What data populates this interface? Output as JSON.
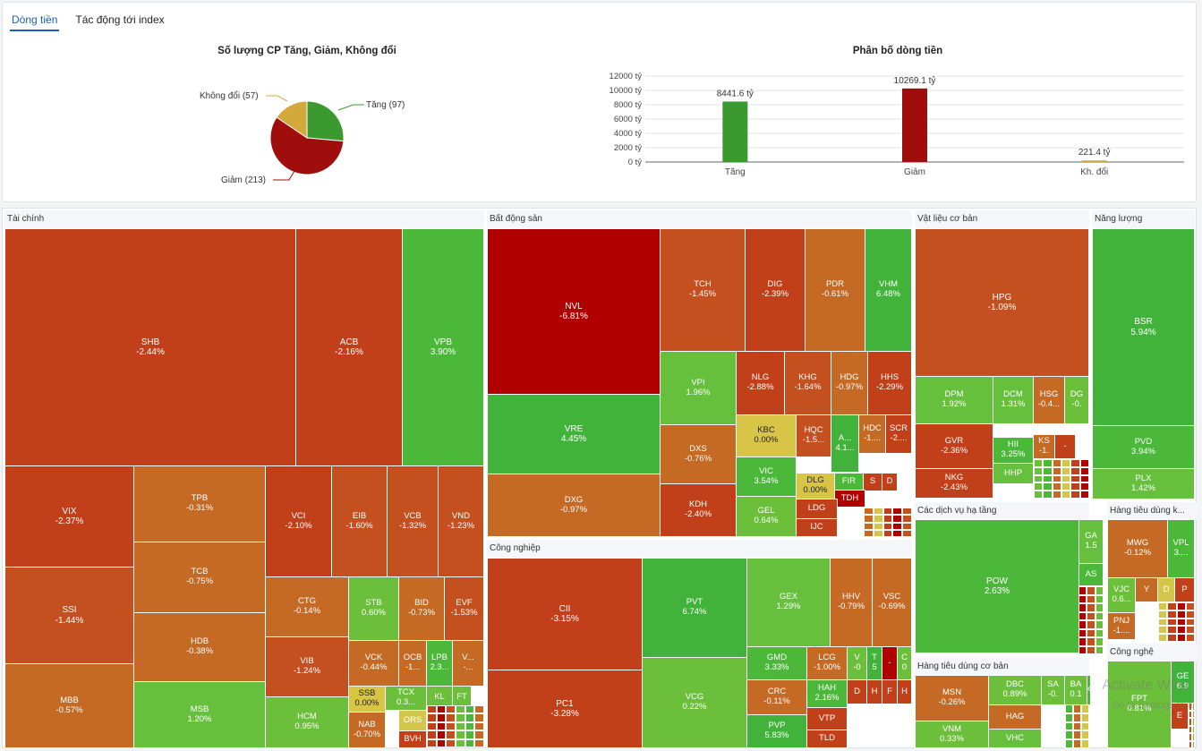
{
  "tabs": [
    "Dòng tiền",
    "Tác động tới index"
  ],
  "pie": {
    "title": "Số lượng CP Tăng, Giảm, Không đổi",
    "labels": [
      "Tăng (97)",
      "Giảm (213)",
      "Không đổi (57)"
    ]
  },
  "bar": {
    "title": "Phân bố dòng tiền",
    "y_ticks": [
      "12000 tỷ",
      "10000 tỷ",
      "8000 tỷ",
      "6000 tỷ",
      "4000 tỷ",
      "2000 tỷ",
      "0 tỷ"
    ],
    "value_labels": [
      "8441.6 tỷ",
      "10269.1 tỷ",
      "221.4 tỷ"
    ],
    "categories": [
      "Tăng",
      "Giảm",
      "Kh. đổi"
    ]
  },
  "chart_data": [
    {
      "type": "pie",
      "title": "Số lượng CP Tăng, Giảm, Không đổi",
      "labels": [
        "Tăng",
        "Giảm",
        "Không đổi"
      ],
      "values": [
        97,
        213,
        57
      ],
      "colors": [
        "#3a9a2f",
        "#a00d0d",
        "#d4a93c"
      ]
    },
    {
      "type": "bar",
      "title": "Phân bố dòng tiền",
      "categories": [
        "Tăng",
        "Giảm",
        "Kh. đổi"
      ],
      "values": [
        8441.6,
        10269.1,
        221.4
      ],
      "colors": [
        "#3a9a2f",
        "#a00d0d",
        "#d4a93c"
      ],
      "ylim": [
        0,
        12000
      ]
    }
  ],
  "sectors": [
    "Tài chính",
    "Bất động sản",
    "Vật liệu cơ bản",
    "Năng lượng",
    "Công nghiệp",
    "Các dịch vụ hạ tầng",
    "Hàng tiêu dùng k...",
    "Hàng tiêu dùng cơ bản",
    "Công nghệ"
  ],
  "stocks": [
    {
      "t": "SHB",
      "p": "-2.44%"
    },
    {
      "t": "ACB",
      "p": "-2.16%"
    },
    {
      "t": "VPB",
      "p": "3.90%"
    },
    {
      "t": "VIX",
      "p": "-2.37%"
    },
    {
      "t": "TPB",
      "p": "-0.31%"
    },
    {
      "t": "VCI",
      "p": "-2.10%"
    },
    {
      "t": "EIB",
      "p": "-1.60%"
    },
    {
      "t": "VCB",
      "p": "-1.32%"
    },
    {
      "t": "VND",
      "p": "-1.23%"
    },
    {
      "t": "TCB",
      "p": "-0.75%"
    },
    {
      "t": "CTG",
      "p": "-0.14%"
    },
    {
      "t": "STB",
      "p": "0.60%"
    },
    {
      "t": "BID",
      "p": "-0.73%"
    },
    {
      "t": "EVF",
      "p": "-1.53%"
    },
    {
      "t": "SSI",
      "p": "-1.44%"
    },
    {
      "t": "HDB",
      "p": "-0.38%"
    },
    {
      "t": "VIB",
      "p": "-1.24%"
    },
    {
      "t": "VCK",
      "p": "-0.44%"
    },
    {
      "t": "OCB",
      "p": "-1..."
    },
    {
      "t": "LPB",
      "p": "2.3..."
    },
    {
      "t": "V...",
      "p": "-..."
    },
    {
      "t": "SSB",
      "p": "0.00%"
    },
    {
      "t": "TCX",
      "p": "0.3..."
    },
    {
      "t": "KL",
      "p": ""
    },
    {
      "t": "FT",
      "p": ""
    },
    {
      "t": "MBB",
      "p": "-0.57%"
    },
    {
      "t": "MSB",
      "p": "1.20%"
    },
    {
      "t": "HCM",
      "p": "0.95%"
    },
    {
      "t": "NAB",
      "p": "-0.70%"
    },
    {
      "t": "ORS",
      "p": ""
    },
    {
      "t": "BVH",
      "p": ""
    },
    {
      "t": "NVL",
      "p": "-6.81%"
    },
    {
      "t": "TCH",
      "p": "-1.45%"
    },
    {
      "t": "DIG",
      "p": "-2.39%"
    },
    {
      "t": "PDR",
      "p": "-0.61%"
    },
    {
      "t": "VHM",
      "p": "6.48%"
    },
    {
      "t": "VPI",
      "p": "1.96%"
    },
    {
      "t": "NLG",
      "p": "-2.88%"
    },
    {
      "t": "KHG",
      "p": "-1.64%"
    },
    {
      "t": "HDG",
      "p": "-0.97%"
    },
    {
      "t": "HHS",
      "p": "-2.29%"
    },
    {
      "t": "VRE",
      "p": "4.45%"
    },
    {
      "t": "KBC",
      "p": "0.00%"
    },
    {
      "t": "HQC",
      "p": "-1.5..."
    },
    {
      "t": "A...",
      "p": "4.1..."
    },
    {
      "t": "HDC",
      "p": "-1...."
    },
    {
      "t": "SCR",
      "p": "-2...."
    },
    {
      "t": "DXS",
      "p": "-0.76%"
    },
    {
      "t": "VIC",
      "p": "3.54%"
    },
    {
      "t": "DLG",
      "p": "0.00%"
    },
    {
      "t": "FIR",
      "p": ""
    },
    {
      "t": "S",
      "p": ""
    },
    {
      "t": "D",
      "p": ""
    },
    {
      "t": "TDH",
      "p": ""
    },
    {
      "t": "DXG",
      "p": "-0.97%"
    },
    {
      "t": "KDH",
      "p": "-2.40%"
    },
    {
      "t": "GEL",
      "p": "0.64%"
    },
    {
      "t": "LDG",
      "p": ""
    },
    {
      "t": "IJC",
      "p": ""
    },
    {
      "t": "HPG",
      "p": "-1.09%"
    },
    {
      "t": "DPM",
      "p": "1.92%"
    },
    {
      "t": "DCM",
      "p": "1.31%"
    },
    {
      "t": "HSG",
      "p": "-0.4..."
    },
    {
      "t": "DG",
      "p": "-0."
    },
    {
      "t": "GVR",
      "p": "-2.36%"
    },
    {
      "t": "HII",
      "p": "3.25%"
    },
    {
      "t": "KS",
      "p": "-1."
    },
    {
      "t": "-",
      "p": ""
    },
    {
      "t": "NKG",
      "p": "-2.43%"
    },
    {
      "t": "HHP",
      "p": ""
    },
    {
      "t": "BSR",
      "p": "5.94%"
    },
    {
      "t": "PVD",
      "p": "3.94%"
    },
    {
      "t": "PLX",
      "p": "1.42%"
    },
    {
      "t": "CII",
      "p": "-3.15%"
    },
    {
      "t": "PVT",
      "p": "6.74%"
    },
    {
      "t": "GEX",
      "p": "1.29%"
    },
    {
      "t": "HHV",
      "p": "-0.79%"
    },
    {
      "t": "VSC",
      "p": "-0.69%"
    },
    {
      "t": "GMD",
      "p": "3.33%"
    },
    {
      "t": "LCG",
      "p": "-1.00%"
    },
    {
      "t": "V",
      "p": "-0"
    },
    {
      "t": "T",
      "p": "5"
    },
    {
      "t": "-",
      "p": ""
    },
    {
      "t": "C",
      "p": "0"
    },
    {
      "t": "PC1",
      "p": "-3.28%"
    },
    {
      "t": "VCG",
      "p": "0.22%"
    },
    {
      "t": "CRC",
      "p": "-0.11%"
    },
    {
      "t": "HAH",
      "p": "2.16%"
    },
    {
      "t": "D",
      "p": ""
    },
    {
      "t": "H",
      "p": ""
    },
    {
      "t": "F",
      "p": ""
    },
    {
      "t": "H",
      "p": ""
    },
    {
      "t": "PVP",
      "p": "5.83%"
    },
    {
      "t": "VTP",
      "p": ""
    },
    {
      "t": "TLD",
      "p": ""
    },
    {
      "t": "POW",
      "p": "2.63%"
    },
    {
      "t": "GA",
      "p": "1.5"
    },
    {
      "t": "AS",
      "p": ""
    },
    {
      "t": "MWG",
      "p": "-0.12%"
    },
    {
      "t": "VPL",
      "p": "3...."
    },
    {
      "t": "VJC",
      "p": "0.6..."
    },
    {
      "t": "Y",
      "p": ""
    },
    {
      "t": "D",
      "p": ""
    },
    {
      "t": "P",
      "p": ""
    },
    {
      "t": "PNJ",
      "p": "-1...."
    },
    {
      "t": "MSN",
      "p": "-0.26%"
    },
    {
      "t": "DBC",
      "p": "0.89%"
    },
    {
      "t": "SA",
      "p": "-0."
    },
    {
      "t": "BA",
      "p": "0.1"
    },
    {
      "t": "K",
      "p": ""
    },
    {
      "t": "HAG",
      "p": ""
    },
    {
      "t": "A",
      "p": ""
    },
    {
      "t": "VNM",
      "p": "0.33%"
    },
    {
      "t": "VHC",
      "p": ""
    },
    {
      "t": "FPT",
      "p": "0.81%"
    },
    {
      "t": "GE",
      "p": "6.9"
    },
    {
      "t": "E",
      "p": ""
    }
  ],
  "watermark": [
    "Activate Wind",
    "Go to Settings to a"
  ]
}
